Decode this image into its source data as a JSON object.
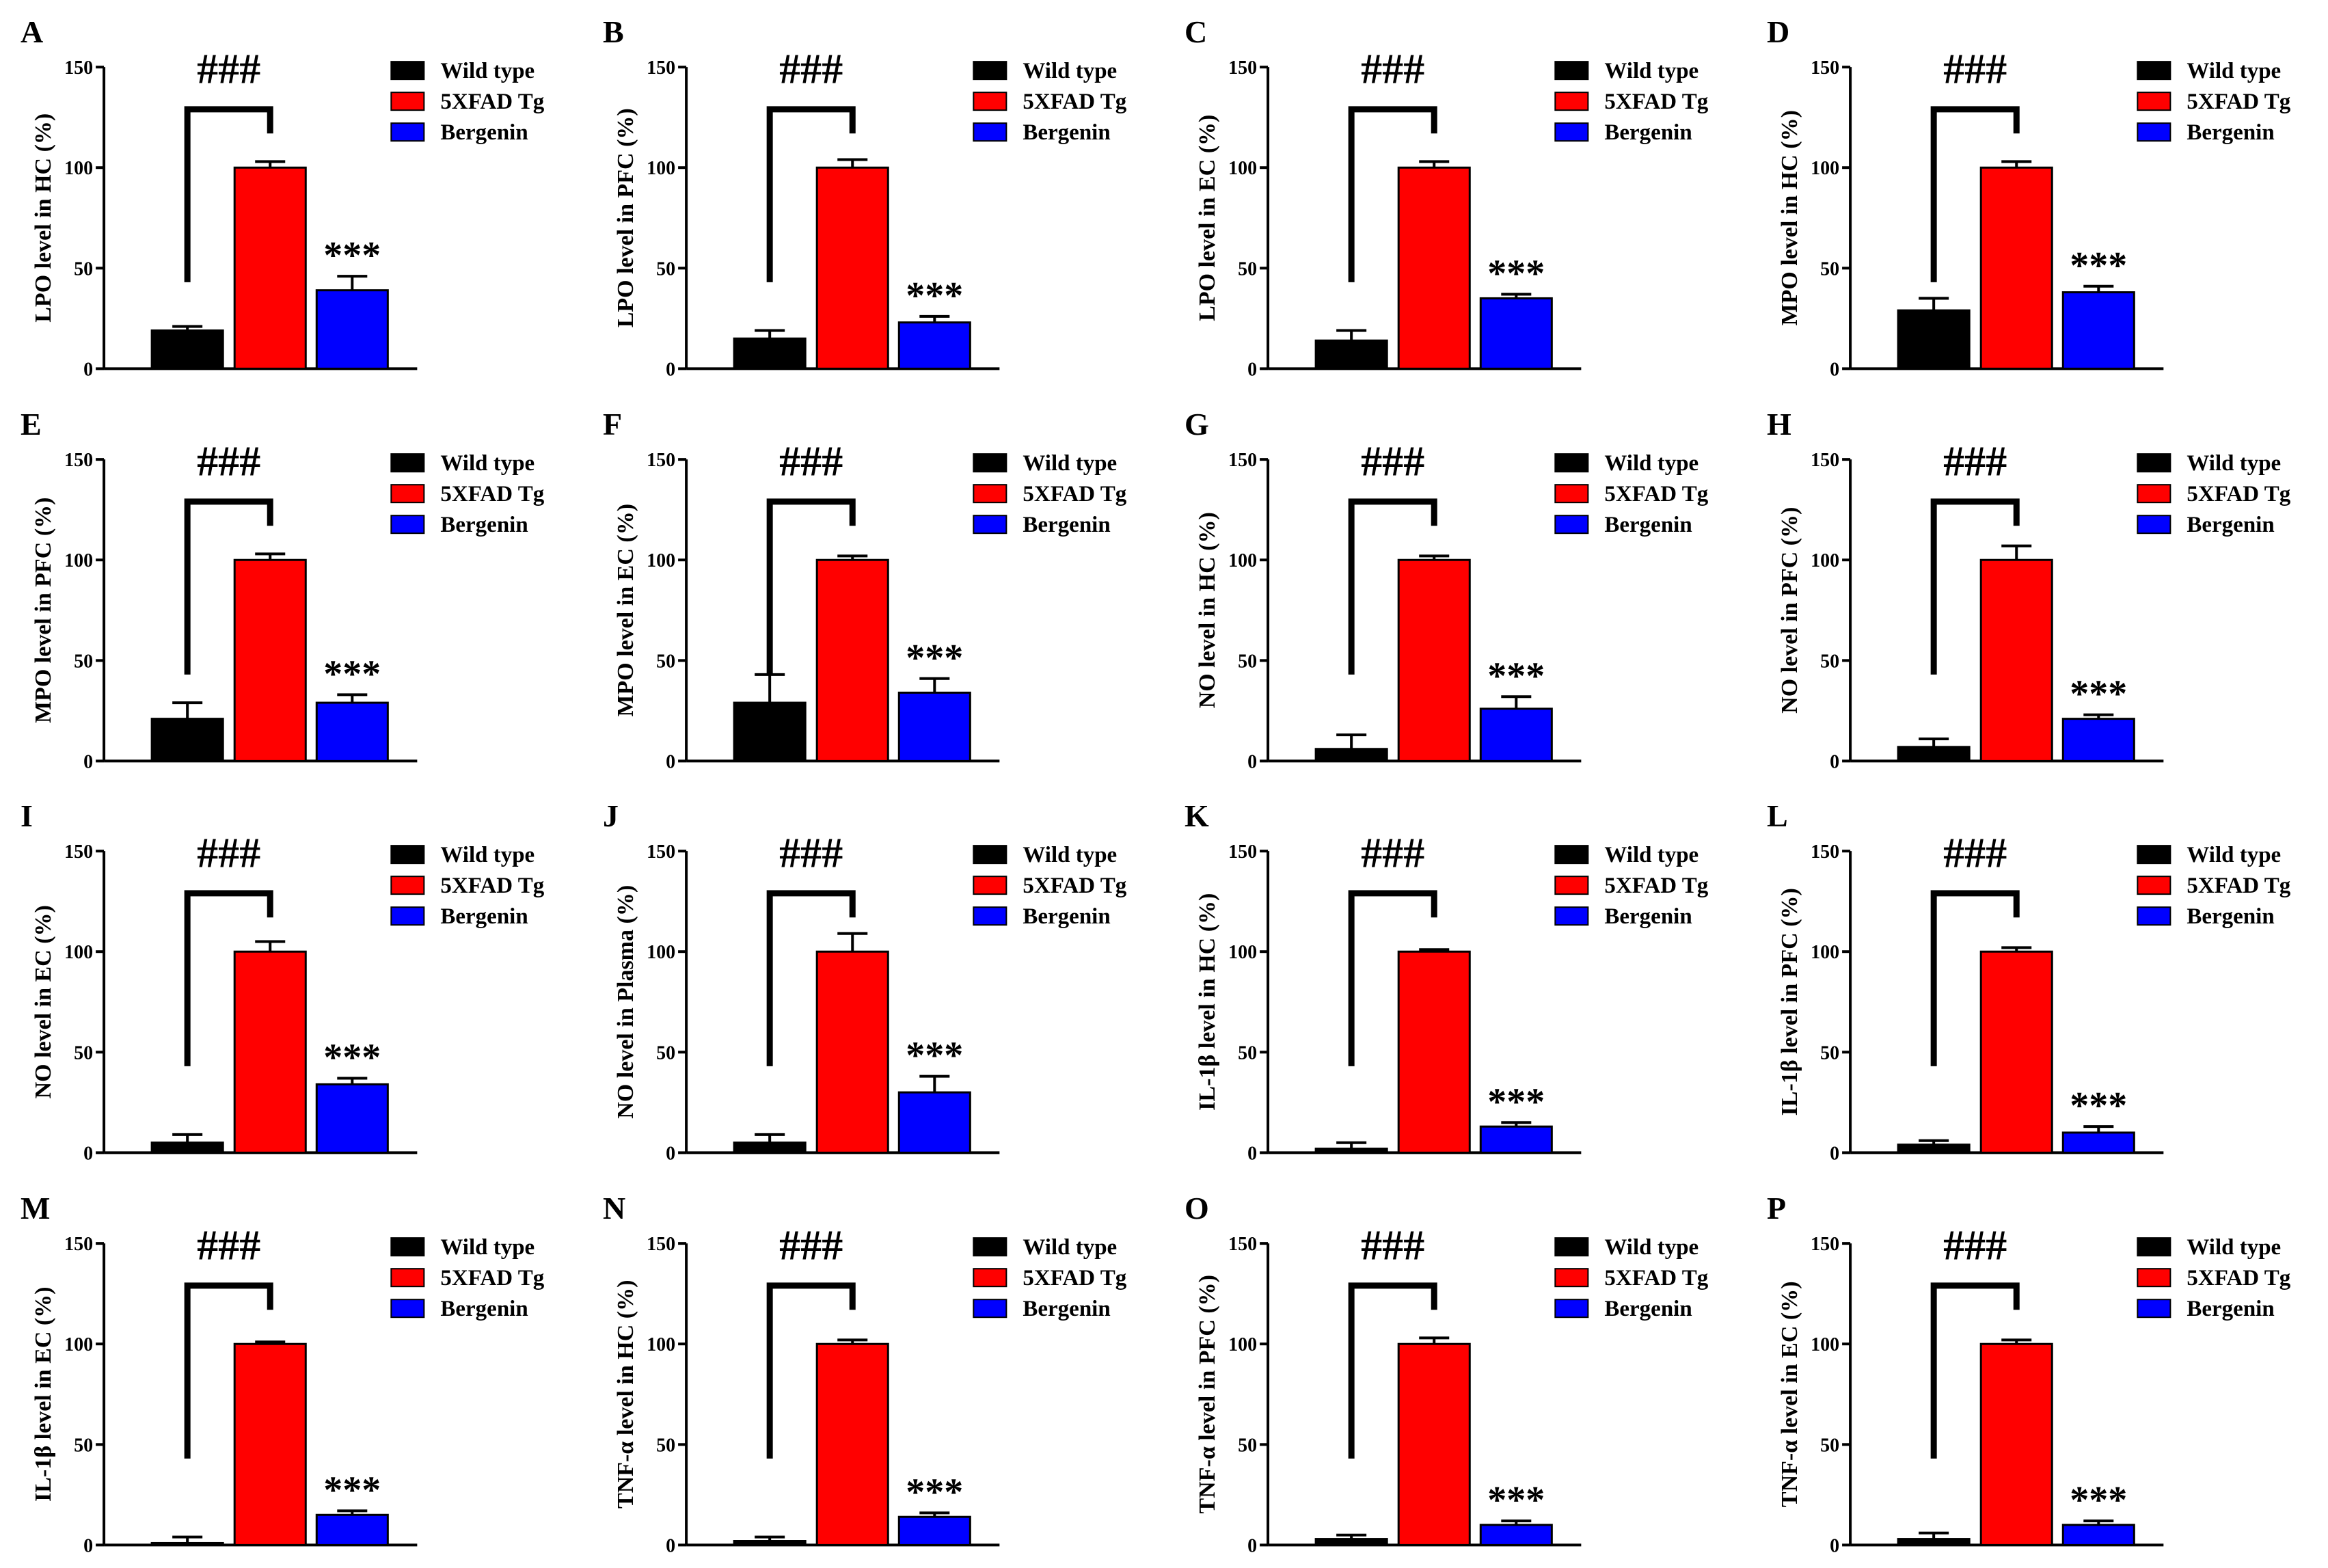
{
  "legend": [
    {
      "label": "Wild type",
      "color": "#000000"
    },
    {
      "label": "5XFAD Tg",
      "color": "#ff0000"
    },
    {
      "label": "Bergenin",
      "color": "#0000ff"
    }
  ],
  "chart_data": [
    {
      "type": "bar",
      "panel": "A",
      "ylabel": "LPO level in HC (%)",
      "ylim": [
        0,
        150
      ],
      "yticks": [
        0,
        50,
        100,
        150
      ],
      "categories": [
        "Wild type",
        "5XFAD Tg",
        "Bergenin"
      ],
      "values": [
        19,
        100,
        39
      ],
      "errors": [
        2,
        3,
        7
      ],
      "annotations": {
        "bracket": "###",
        "bergenin": "***"
      }
    },
    {
      "type": "bar",
      "panel": "B",
      "ylabel": "LPO level in PFC (%)",
      "ylim": [
        0,
        150
      ],
      "yticks": [
        0,
        50,
        100,
        150
      ],
      "categories": [
        "Wild type",
        "5XFAD Tg",
        "Bergenin"
      ],
      "values": [
        15,
        100,
        23
      ],
      "errors": [
        4,
        4,
        3
      ],
      "annotations": {
        "bracket": "###",
        "bergenin": "***"
      }
    },
    {
      "type": "bar",
      "panel": "C",
      "ylabel": "LPO level in EC (%)",
      "ylim": [
        0,
        150
      ],
      "yticks": [
        0,
        50,
        100,
        150
      ],
      "categories": [
        "Wild type",
        "5XFAD Tg",
        "Bergenin"
      ],
      "values": [
        14,
        100,
        35
      ],
      "errors": [
        5,
        3,
        2
      ],
      "annotations": {
        "bracket": "###",
        "bergenin": "***"
      }
    },
    {
      "type": "bar",
      "panel": "D",
      "ylabel": "MPO level in HC (%)",
      "ylim": [
        0,
        150
      ],
      "yticks": [
        0,
        50,
        100,
        150
      ],
      "categories": [
        "Wild type",
        "5XFAD Tg",
        "Bergenin"
      ],
      "values": [
        29,
        100,
        38
      ],
      "errors": [
        6,
        3,
        3
      ],
      "annotations": {
        "bracket": "###",
        "bergenin": "***"
      }
    },
    {
      "type": "bar",
      "panel": "E",
      "ylabel": "MPO level in PFC (%)",
      "ylim": [
        0,
        150
      ],
      "yticks": [
        0,
        50,
        100,
        150
      ],
      "categories": [
        "Wild type",
        "5XFAD Tg",
        "Bergenin"
      ],
      "values": [
        21,
        100,
        29
      ],
      "errors": [
        8,
        3,
        4
      ],
      "annotations": {
        "bracket": "###",
        "bergenin": "***"
      }
    },
    {
      "type": "bar",
      "panel": "F",
      "ylabel": "MPO level in EC (%)",
      "ylim": [
        0,
        150
      ],
      "yticks": [
        0,
        50,
        100,
        150
      ],
      "categories": [
        "Wild type",
        "5XFAD Tg",
        "Bergenin"
      ],
      "values": [
        29,
        100,
        34
      ],
      "errors": [
        14,
        2,
        7
      ],
      "annotations": {
        "bracket": "###",
        "bergenin": "***"
      }
    },
    {
      "type": "bar",
      "panel": "G",
      "ylabel": "NO level in HC (%)",
      "ylim": [
        0,
        150
      ],
      "yticks": [
        0,
        50,
        100,
        150
      ],
      "categories": [
        "Wild type",
        "5XFAD Tg",
        "Bergenin"
      ],
      "values": [
        6,
        100,
        26
      ],
      "errors": [
        7,
        2,
        6
      ],
      "annotations": {
        "bracket": "###",
        "bergenin": "***"
      }
    },
    {
      "type": "bar",
      "panel": "H",
      "ylabel": "NO level in PFC (%)",
      "ylim": [
        0,
        150
      ],
      "yticks": [
        0,
        50,
        100,
        150
      ],
      "categories": [
        "Wild type",
        "5XFAD Tg",
        "Bergenin"
      ],
      "values": [
        7,
        100,
        21
      ],
      "errors": [
        4,
        7,
        2
      ],
      "annotations": {
        "bracket": "###",
        "bergenin": "***"
      }
    },
    {
      "type": "bar",
      "panel": "I",
      "ylabel": "NO level in EC (%)",
      "ylim": [
        0,
        150
      ],
      "yticks": [
        0,
        50,
        100,
        150
      ],
      "categories": [
        "Wild type",
        "5XFAD Tg",
        "Bergenin"
      ],
      "values": [
        5,
        100,
        34
      ],
      "errors": [
        4,
        5,
        3
      ],
      "annotations": {
        "bracket": "###",
        "bergenin": "***"
      }
    },
    {
      "type": "bar",
      "panel": "J",
      "ylabel": "NO level in Plasma (%)",
      "ylim": [
        0,
        150
      ],
      "yticks": [
        0,
        50,
        100,
        150
      ],
      "categories": [
        "Wild type",
        "5XFAD Tg",
        "Bergenin"
      ],
      "values": [
        5,
        100,
        30
      ],
      "errors": [
        4,
        9,
        8
      ],
      "annotations": {
        "bracket": "###",
        "bergenin": "***"
      }
    },
    {
      "type": "bar",
      "panel": "K",
      "ylabel": "IL-1β level in HC (%)",
      "ylim": [
        0,
        150
      ],
      "yticks": [
        0,
        50,
        100,
        150
      ],
      "categories": [
        "Wild type",
        "5XFAD Tg",
        "Bergenin"
      ],
      "values": [
        2,
        100,
        13
      ],
      "errors": [
        3,
        1,
        2
      ],
      "annotations": {
        "bracket": "###",
        "bergenin": "***"
      }
    },
    {
      "type": "bar",
      "panel": "L",
      "ylabel": "IL-1β level in PFC (%)",
      "ylim": [
        0,
        150
      ],
      "yticks": [
        0,
        50,
        100,
        150
      ],
      "categories": [
        "Wild type",
        "5XFAD Tg",
        "Bergenin"
      ],
      "values": [
        4,
        100,
        10
      ],
      "errors": [
        2,
        2,
        3
      ],
      "annotations": {
        "bracket": "###",
        "bergenin": "***"
      }
    },
    {
      "type": "bar",
      "panel": "M",
      "ylabel": "IL-1β level in EC (%)",
      "ylim": [
        0,
        150
      ],
      "yticks": [
        0,
        50,
        100,
        150
      ],
      "categories": [
        "Wild type",
        "5XFAD Tg",
        "Bergenin"
      ],
      "values": [
        1,
        100,
        15
      ],
      "errors": [
        3,
        1,
        2
      ],
      "annotations": {
        "bracket": "###",
        "bergenin": "***"
      }
    },
    {
      "type": "bar",
      "panel": "N",
      "ylabel": "TNF-α level in HC (%)",
      "ylim": [
        0,
        150
      ],
      "yticks": [
        0,
        50,
        100,
        150
      ],
      "categories": [
        "Wild type",
        "5XFAD Tg",
        "Bergenin"
      ],
      "values": [
        2,
        100,
        14
      ],
      "errors": [
        2,
        2,
        2
      ],
      "annotations": {
        "bracket": "###",
        "bergenin": "***"
      }
    },
    {
      "type": "bar",
      "panel": "O",
      "ylabel": "TNF-α level in PFC (%)",
      "ylim": [
        0,
        150
      ],
      "yticks": [
        0,
        50,
        100,
        150
      ],
      "categories": [
        "Wild type",
        "5XFAD Tg",
        "Bergenin"
      ],
      "values": [
        3,
        100,
        10
      ],
      "errors": [
        2,
        3,
        2
      ],
      "annotations": {
        "bracket": "###",
        "bergenin": "***"
      }
    },
    {
      "type": "bar",
      "panel": "P",
      "ylabel": "TNF-α level in EC (%)",
      "ylim": [
        0,
        150
      ],
      "yticks": [
        0,
        50,
        100,
        150
      ],
      "categories": [
        "Wild type",
        "5XFAD Tg",
        "Bergenin"
      ],
      "values": [
        3,
        100,
        10
      ],
      "errors": [
        3,
        2,
        2
      ],
      "annotations": {
        "bracket": "###",
        "bergenin": "***"
      }
    }
  ]
}
